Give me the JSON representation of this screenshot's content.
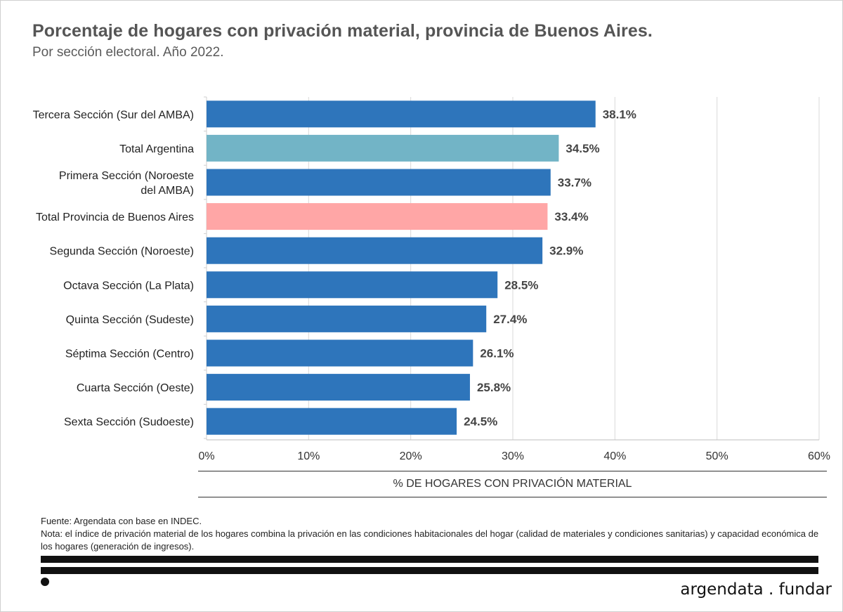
{
  "header": {
    "title": "Porcentaje de hogares con privación material, provincia de Buenos Aires.",
    "subtitle": "Por sección electoral. Año 2022."
  },
  "chart_data": {
    "type": "bar",
    "orientation": "horizontal",
    "categories": [
      "Tercera Sección (Sur del AMBA)",
      "Total Argentina",
      "Primera Sección (Noroeste del AMBA)",
      "Total Provincia de Buenos Aires",
      "Segunda Sección (Noroeste)",
      "Octava Sección (La Plata)",
      "Quinta Sección (Sudeste)",
      "Séptima Sección (Centro)",
      "Cuarta Sección (Oeste)",
      "Sexta Sección (Sudoeste)"
    ],
    "values": [
      38.1,
      34.5,
      33.7,
      33.4,
      32.9,
      28.5,
      27.4,
      26.1,
      25.8,
      24.5
    ],
    "value_labels": [
      "38.1%",
      "34.5%",
      "33.7%",
      "33.4%",
      "32.9%",
      "28.5%",
      "27.4%",
      "26.1%",
      "25.8%",
      "24.5%"
    ],
    "bar_colors": [
      "#2e75bb",
      "#72b4c6",
      "#2e75bb",
      "#ffa6a6",
      "#2e75bb",
      "#2e75bb",
      "#2e75bb",
      "#2e75bb",
      "#2e75bb",
      "#2e75bb"
    ],
    "xlim": [
      0,
      60
    ],
    "xticks": [
      0,
      10,
      20,
      30,
      40,
      50,
      60
    ],
    "xtick_labels": [
      "0%",
      "10%",
      "20%",
      "30%",
      "40%",
      "50%",
      "60%"
    ],
    "xlabel": "% DE HOGARES CON PRIVACIÓN MATERIAL",
    "ylabel": "",
    "grid": true
  },
  "footer": {
    "source": "Fuente: Argendata con base en INDEC.",
    "note": "Nota: el índice de privación material de los hogares combina la privación en las condiciones habitacionales del hogar (calidad de materiales y condiciones sanitarias) y capacidad económica de los hogares (generación de ingresos).",
    "brand": "argendata . fundar"
  },
  "colors": {
    "primary": "#2e75bb",
    "total_argentina": "#72b4c6",
    "total_provincia": "#ffa6a6",
    "grid": "#d9d9d9"
  }
}
